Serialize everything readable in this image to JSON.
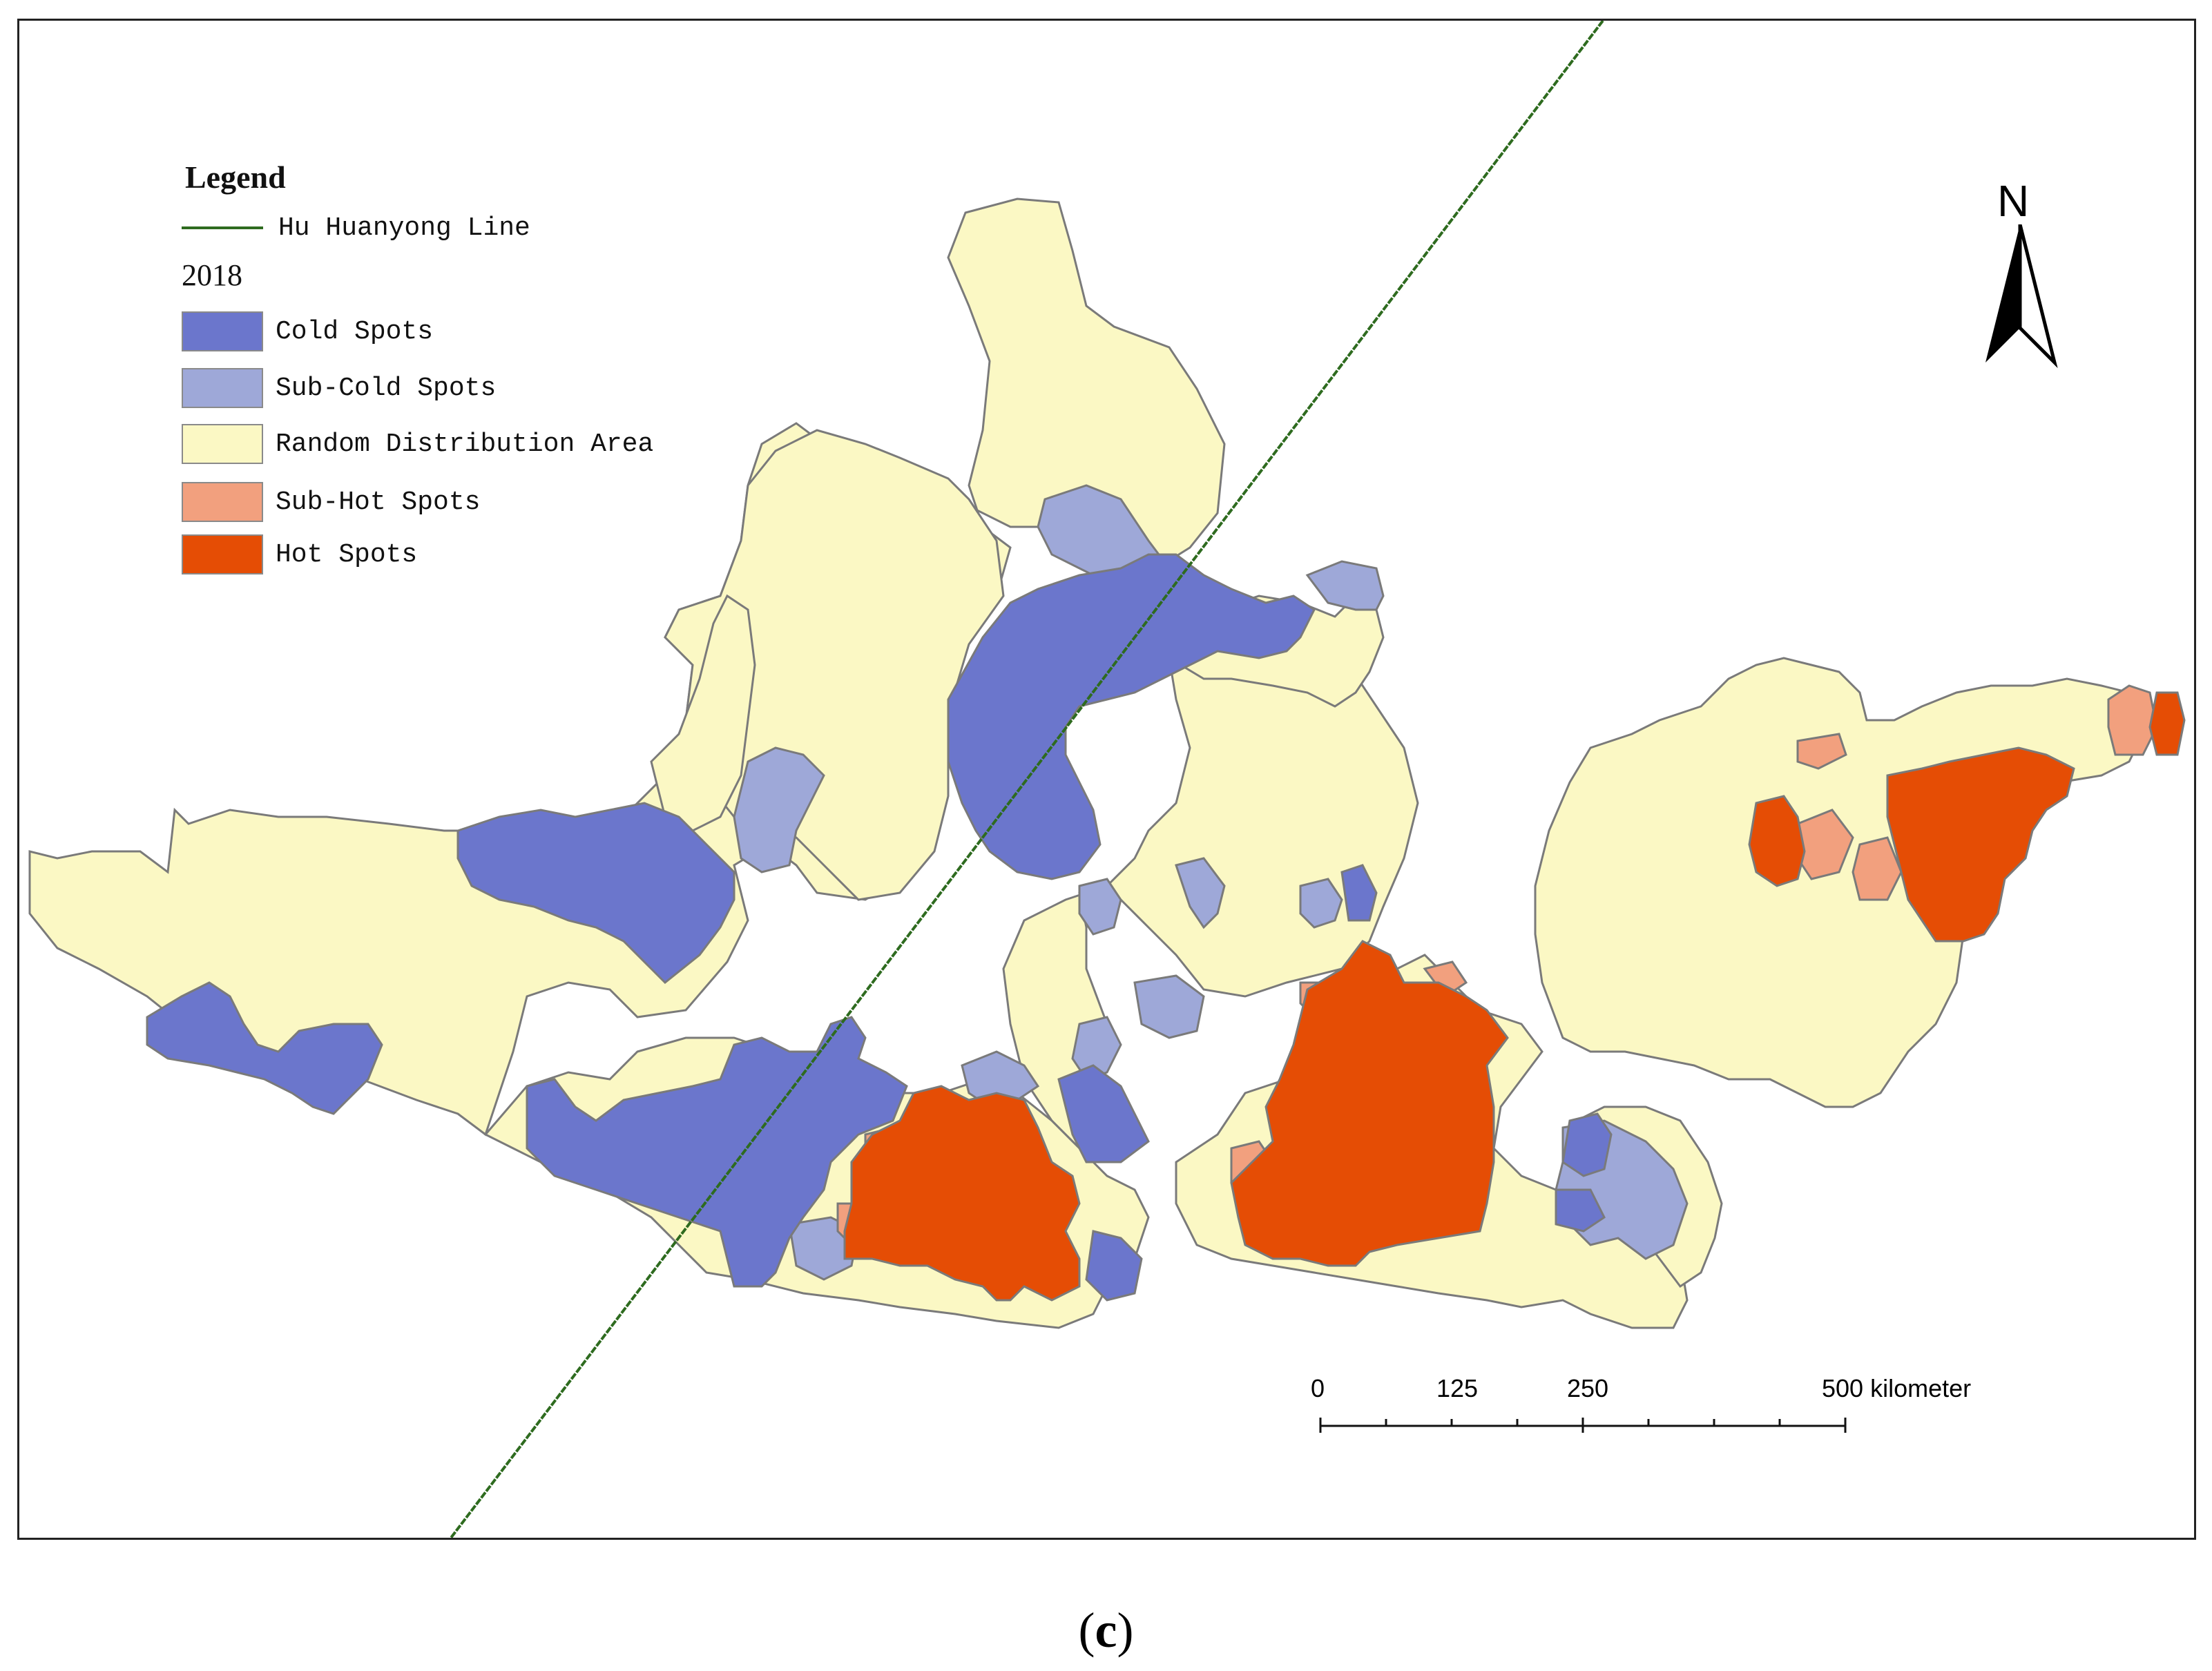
{
  "legend": {
    "title": "Legend",
    "line_label": "Hu Huanyong Line",
    "line_color": "#2e6b1f",
    "year": "2018",
    "items": [
      {
        "label": "Cold Spots",
        "color": "#6b76cc"
      },
      {
        "label": "Sub-Cold Spots",
        "color": "#9ea8d8"
      },
      {
        "label": "Random Distribution Area",
        "color": "#fbf8c4"
      },
      {
        "label": "Sub-Hot Spots",
        "color": "#f2a07e"
      },
      {
        "label": "Hot Spots",
        "color": "#e54d05"
      }
    ]
  },
  "north_arrow": {
    "letter": "N"
  },
  "scale_bar": {
    "labels": [
      "0",
      "125",
      "250",
      "500 kilometer"
    ]
  },
  "caption": {
    "open": "(",
    "letter": "c",
    "close": ")"
  },
  "boundary_color": "#7a7a7a"
}
